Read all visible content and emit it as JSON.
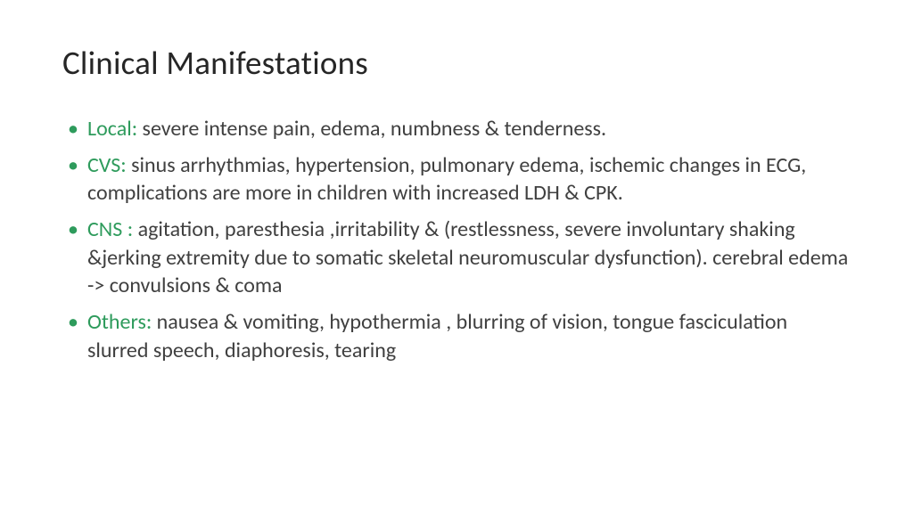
{
  "title": "Clinical Manifestations",
  "accent_color": "#2e9b5c",
  "text_color": "#404040",
  "title_color": "#262626",
  "background_color": "#ffffff",
  "title_fontsize": 37,
  "body_fontsize": 24,
  "bullets": [
    {
      "label": "Local:",
      "text": " severe intense pain, edema, numbness & tenderness."
    },
    {
      "label": "CVS:",
      "text": " sinus arrhythmias, hypertension, pulmonary edema, ischemic changes in ECG, complications are more in children with increased LDH & CPK."
    },
    {
      "label": "CNS :",
      "text": " agitation, paresthesia ,irritability & (restlessness, severe involuntary shaking &jerking extremity due to somatic skeletal neuromuscular dysfunction). cerebral edema -> convulsions & coma"
    },
    {
      "label": "Others:",
      "text": " nausea & vomiting, hypothermia , blurring of vision, tongue fasciculation slurred speech, diaphoresis, tearing"
    }
  ]
}
